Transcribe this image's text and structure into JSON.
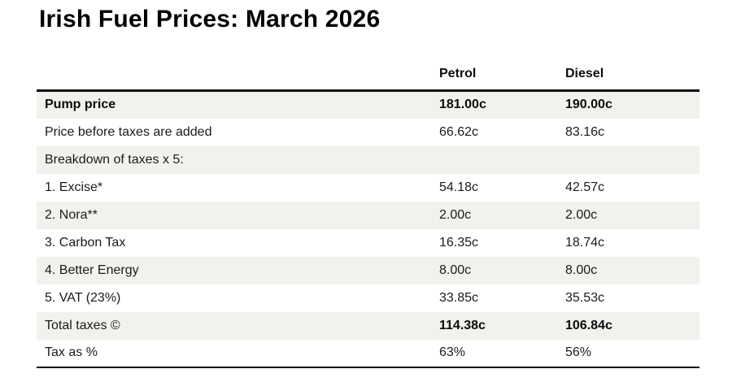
{
  "page": {
    "title": "Irish Fuel Prices: March 2026"
  },
  "colors": {
    "background": "#ffffff",
    "row_shade": "#f3f1ed",
    "text": "#1b1b1b",
    "rule": "#0b0c0c"
  },
  "chart_data": {
    "type": "table",
    "title": "Irish Fuel Prices: March 2026",
    "columns": [
      "",
      "Petrol",
      "Diesel"
    ],
    "header": {
      "petrol": "Petrol",
      "diesel": "Diesel"
    },
    "rows": [
      {
        "label": "Pump price",
        "petrol": "181.00c",
        "diesel": "190.00c",
        "shaded": true,
        "bold": "all"
      },
      {
        "label": "Price before taxes are added",
        "petrol": "66.62c",
        "diesel": "83.16c",
        "shaded": false,
        "bold": "none"
      },
      {
        "label": "Breakdown of taxes x 5:",
        "petrol": "",
        "diesel": "",
        "shaded": true,
        "bold": "none"
      },
      {
        "label": "1. Excise*",
        "petrol": "54.18c",
        "diesel": "42.57c",
        "shaded": false,
        "bold": "none"
      },
      {
        "label": "2. Nora**",
        "petrol": "2.00c",
        "diesel": "2.00c",
        "shaded": true,
        "bold": "none"
      },
      {
        "label": "3. Carbon Tax",
        "petrol": "16.35c",
        "diesel": "18.74c",
        "shaded": false,
        "bold": "none"
      },
      {
        "label": "4. Better Energy",
        "petrol": "8.00c",
        "diesel": "8.00c",
        "shaded": true,
        "bold": "none"
      },
      {
        "label": "5. VAT (23%)",
        "petrol": "33.85c",
        "diesel": "35.53c",
        "shaded": false,
        "bold": "none"
      },
      {
        "label": "Total taxes ©",
        "petrol": "114.38c",
        "diesel": "106.84c",
        "shaded": true,
        "bold": "values"
      },
      {
        "label": "Tax as %",
        "petrol": "63%",
        "diesel": "56%",
        "shaded": false,
        "bold": "none"
      }
    ]
  }
}
